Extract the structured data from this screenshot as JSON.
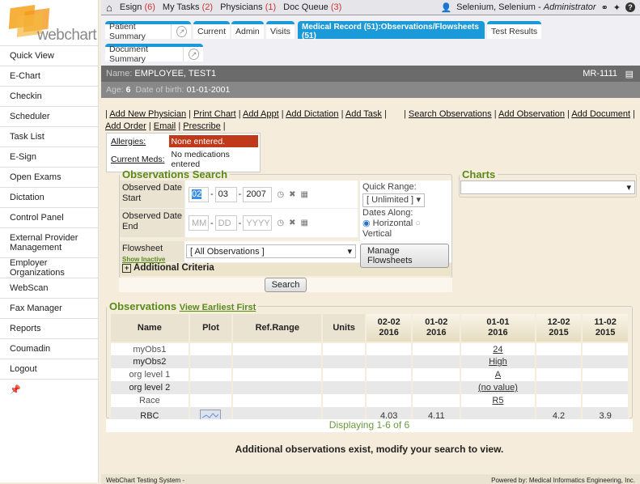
{
  "brand": {
    "logo_text": "webchart"
  },
  "sidebar": {
    "items": [
      "Quick View",
      "E-Chart",
      "Checkin",
      "Scheduler",
      "Task List",
      "E-Sign",
      "Open Exams",
      "Dictation",
      "Control Panel",
      "External Provider Management",
      "Employer Organizations",
      "WebScan",
      "Fax Manager",
      "Reports",
      "Coumadin",
      "Logout"
    ]
  },
  "topbar": {
    "items": [
      {
        "label": "Esign",
        "count": "(6)"
      },
      {
        "label": "My Tasks",
        "count": "(2)"
      },
      {
        "label": "Physicians",
        "count": "(1)"
      },
      {
        "label": "Doc Queue",
        "count": "(3)"
      }
    ],
    "user": "Selenium, Selenium -",
    "role": "Administrator"
  },
  "tabs": {
    "patient_summary": "Patient Summary",
    "current": "Current",
    "admin": "Admin",
    "visits": "Visits",
    "medical_record": "Medical Record (51):Observations/Flowsheets (51)",
    "test_results": "Test Results",
    "document_summary": "Document Summary"
  },
  "patient": {
    "name_label": "Name:",
    "name": "EMPLOYEE, TEST1",
    "mrn": "MR-1111",
    "age_label": "Age:",
    "age": "6",
    "dob_label": "Date of birth:",
    "dob": "01-01-2001"
  },
  "actions": {
    "left": [
      "Add New Physician",
      "Print Chart",
      "Add Appt",
      "Add Dictation",
      "Add Task",
      "Add Order",
      "Email",
      "Prescribe"
    ],
    "right": [
      "Search Observations",
      "Add Observation",
      "Add Document"
    ]
  },
  "allergy": {
    "allergies_label": "Allergies:",
    "allergies_value": "None entered.",
    "meds_label": "Current Meds:",
    "meds_value": "No medications entered"
  },
  "search": {
    "title": "Observations Search",
    "start_label": "Observed Date Start",
    "start_mm": "02",
    "start_dd": "03",
    "start_yyyy": "2007",
    "end_label": "Observed Date End",
    "end_mm_ph": "MM",
    "end_dd_ph": "DD",
    "end_yyyy_ph": "YYYY",
    "quick_range_label": "Quick Range:",
    "quick_range_value": "[ Unlimited ]",
    "dates_along_label": "Dates Along:",
    "horizontal": "Horizontal",
    "vertical": "Vertical",
    "dates_along_selected": "Horizontal",
    "flowsheet_label": "Flowsheet",
    "show_inactive": "Show Inactive",
    "flowsheet_value": "[ All Observations ]",
    "manage_button": "Manage Flowsheets",
    "additional_criteria": "Additional Criteria",
    "search_button": "Search"
  },
  "charts": {
    "title": "Charts",
    "select_value": ""
  },
  "observations": {
    "title": "Observations",
    "view_earliest": "View Earliest First",
    "columns": [
      "Name",
      "Plot",
      "Ref.Range",
      "Units"
    ],
    "dates": [
      [
        "02-02",
        "2016"
      ],
      [
        "01-02",
        "2016"
      ],
      [
        "01-01",
        "2016"
      ],
      [
        "12-02",
        "2015"
      ],
      [
        "11-02",
        "2015"
      ]
    ],
    "rows": [
      {
        "name": "myObs1",
        "plot": false,
        "values": [
          "",
          "",
          "24",
          "",
          ""
        ]
      },
      {
        "name": "myObs2",
        "plot": false,
        "values": [
          "",
          "",
          "High",
          "",
          ""
        ]
      },
      {
        "name": "org level 1",
        "plot": false,
        "values": [
          "",
          "",
          "A",
          "",
          ""
        ]
      },
      {
        "name": "org level 2",
        "plot": false,
        "values": [
          "",
          "",
          "(no value)",
          "",
          ""
        ]
      },
      {
        "name": "Race",
        "plot": false,
        "values": [
          "",
          "",
          "R5",
          "",
          ""
        ]
      },
      {
        "name": "RBC",
        "plot": true,
        "values": [
          "4.03",
          "4.11",
          "",
          "4.2",
          "3.9"
        ]
      }
    ],
    "displaying": "Displaying 1-6 of 6",
    "additional_msg": "Additional observations exist, modify your search to view."
  },
  "footer": {
    "left": "WebChart Testing System -",
    "right": "Powered by: Medical Informatics Engineering, Inc."
  },
  "colors": {
    "accent": "#1a9ad8",
    "legend_green": "#5a8a1a",
    "allergy_red": "#c0391b"
  }
}
